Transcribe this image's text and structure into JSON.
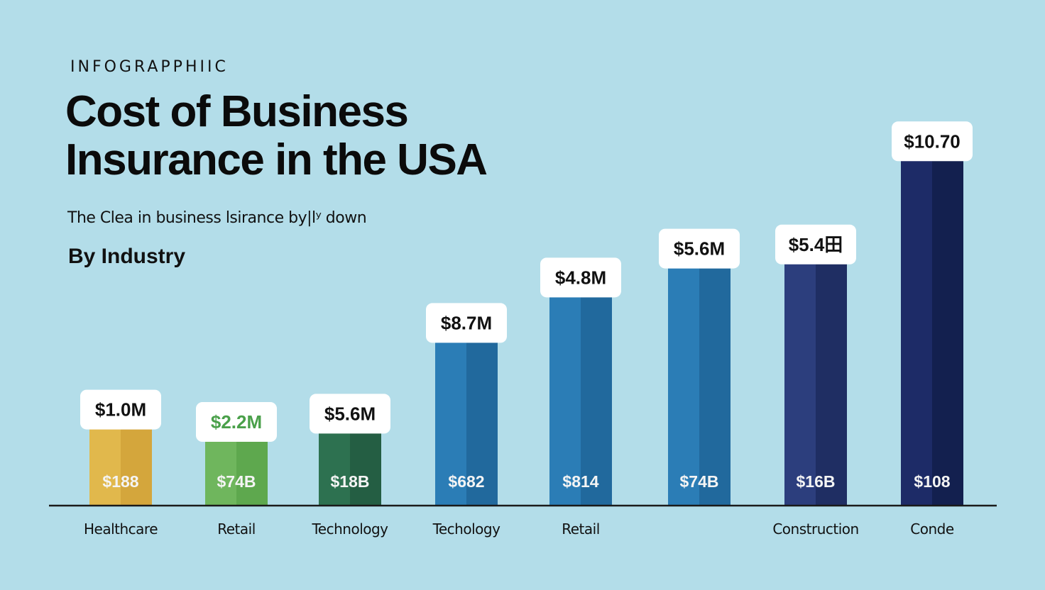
{
  "header": {
    "eyebrow": "INFOGRAPPHIIC",
    "title": "Cost of Business Insurance in the USA",
    "subtitle": "The Clea in business lsirance by|lʸ down",
    "section_label": "By Industry"
  },
  "chart_data": {
    "type": "bar",
    "categories": [
      "Healthcare",
      "Retail",
      "Technology",
      "Techology",
      "Retail",
      "",
      "Construction",
      "Conde"
    ],
    "values": [
      2.0,
      1.7,
      1.9,
      4.1,
      5.2,
      5.9,
      6.0,
      8.5
    ],
    "top_labels": [
      "$1.0M",
      "$2.2M",
      "$5.6M",
      "$8.7M",
      "$4.8M",
      "$5.6M",
      "$5.4田",
      "$10.70"
    ],
    "inner_labels": [
      "$188",
      "$74B",
      "$18B",
      "$682",
      "$814",
      "$74B",
      "$16B",
      "$108"
    ],
    "colors": [
      "#e1b84c",
      "#6fb65d",
      "#2d7150",
      "#2b7db6",
      "#2b7db6",
      "#2b7db6",
      "#2c3e7d",
      "#1d2b67"
    ],
    "shades": [
      "#d4a63c",
      "#5ea84e",
      "#245e43",
      "#21699d",
      "#21699d",
      "#21699d",
      "#1f2e63",
      "#13204f"
    ],
    "top_label_colors": [
      "#111111",
      "#4aa04a",
      "#111111",
      "#111111",
      "#111111",
      "#111111",
      "#111111",
      "#111111"
    ],
    "ylim": [
      0,
      10
    ],
    "grid": false,
    "xlabel": "",
    "ylabel": ""
  }
}
